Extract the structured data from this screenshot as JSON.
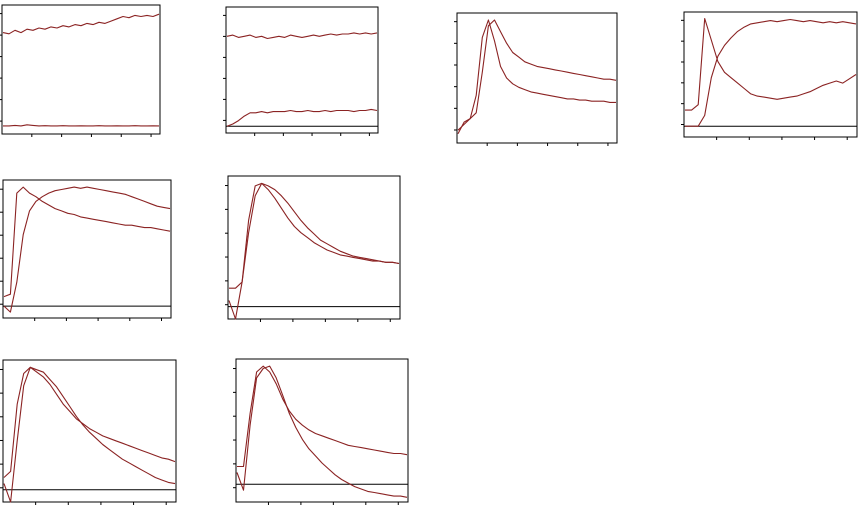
{
  "colors": {
    "series": "#8b2323",
    "axis": "#000000"
  },
  "chart_data": [
    {
      "type": "line",
      "ylim": [
        -0.06,
        1.06
      ],
      "zero_line": false,
      "n_xticks": 5,
      "n_yticks": 6,
      "series": [
        {
          "values": [
            0.82,
            0.81,
            0.84,
            0.82,
            0.85,
            0.84,
            0.86,
            0.85,
            0.87,
            0.86,
            0.88,
            0.87,
            0.89,
            0.88,
            0.9,
            0.89,
            0.91,
            0.9,
            0.92,
            0.94,
            0.96,
            0.95,
            0.97,
            0.96,
            0.97,
            0.96,
            0.98
          ]
        },
        {
          "values": [
            0.01,
            0.01,
            0.015,
            0.01,
            0.02,
            0.015,
            0.01,
            0.012,
            0.01,
            0.01,
            0.012,
            0.01,
            0.01,
            0.011,
            0.01,
            0.01,
            0.012,
            0.01,
            0.01,
            0.011,
            0.01,
            0.01,
            0.012,
            0.01,
            0.01,
            0.011,
            0.01
          ]
        }
      ]
    },
    {
      "type": "line",
      "ylim": [
        -0.06,
        1.06
      ],
      "zero_line": true,
      "n_xticks": 5,
      "n_yticks": 6,
      "series": [
        {
          "values": [
            0.8,
            0.81,
            0.79,
            0.8,
            0.81,
            0.79,
            0.8,
            0.78,
            0.79,
            0.8,
            0.79,
            0.81,
            0.8,
            0.79,
            0.8,
            0.81,
            0.8,
            0.81,
            0.82,
            0.81,
            0.82,
            0.82,
            0.83,
            0.82,
            0.83,
            0.82,
            0.83
          ]
        },
        {
          "values": [
            0,
            0.02,
            0.05,
            0.09,
            0.12,
            0.12,
            0.13,
            0.12,
            0.13,
            0.13,
            0.13,
            0.14,
            0.13,
            0.13,
            0.14,
            0.13,
            0.13,
            0.14,
            0.13,
            0.14,
            0.14,
            0.14,
            0.13,
            0.14,
            0.14,
            0.15,
            0.14
          ]
        }
      ]
    },
    {
      "type": "line",
      "ylim": [
        -0.06,
        1.06
      ],
      "zero_line": false,
      "n_xticks": 5,
      "n_yticks": 6,
      "series": [
        {
          "values": [
            0.02,
            0.12,
            0.15,
            0.2,
            0.55,
            0.95,
            1,
            0.9,
            0.8,
            0.72,
            0.68,
            0.64,
            0.62,
            0.6,
            0.59,
            0.58,
            0.57,
            0.56,
            0.55,
            0.54,
            0.53,
            0.52,
            0.51,
            0.5,
            0.49,
            0.49,
            0.48
          ]
        },
        {
          "values": [
            0.05,
            0.1,
            0.15,
            0.35,
            0.85,
            1,
            0.82,
            0.6,
            0.5,
            0.45,
            0.42,
            0.4,
            0.38,
            0.37,
            0.36,
            0.35,
            0.34,
            0.33,
            0.32,
            0.32,
            0.31,
            0.31,
            0.3,
            0.3,
            0.3,
            0.29,
            0.29
          ]
        }
      ]
    },
    {
      "type": "line",
      "ylim": [
        -0.1,
        1.06
      ],
      "zero_line": true,
      "n_xticks": 5,
      "n_yticks": 6,
      "series": [
        {
          "values": [
            0.15,
            0.15,
            0.2,
            1,
            0.8,
            0.6,
            0.5,
            0.45,
            0.4,
            0.35,
            0.3,
            0.28,
            0.27,
            0.26,
            0.25,
            0.26,
            0.27,
            0.28,
            0.3,
            0.32,
            0.35,
            0.38,
            0.4,
            0.42,
            0.4,
            0.44,
            0.48
          ]
        },
        {
          "values": [
            0,
            0,
            0,
            0.1,
            0.45,
            0.65,
            0.75,
            0.82,
            0.88,
            0.92,
            0.95,
            0.96,
            0.97,
            0.98,
            0.97,
            0.98,
            0.99,
            0.98,
            0.97,
            0.98,
            0.97,
            0.96,
            0.97,
            0.96,
            0.97,
            0.96,
            0.95
          ]
        }
      ]
    },
    {
      "type": "line",
      "ylim": [
        -0.1,
        1.06
      ],
      "zero_line": true,
      "n_xticks": 5,
      "n_yticks": 6,
      "series": [
        {
          "values": [
            0.08,
            0.1,
            0.95,
            1,
            0.95,
            0.92,
            0.88,
            0.85,
            0.82,
            0.8,
            0.78,
            0.77,
            0.75,
            0.74,
            0.73,
            0.72,
            0.71,
            0.7,
            0.69,
            0.68,
            0.68,
            0.67,
            0.66,
            0.66,
            0.65,
            0.64,
            0.63
          ]
        },
        {
          "values": [
            0,
            -0.05,
            0.2,
            0.6,
            0.8,
            0.88,
            0.92,
            0.95,
            0.97,
            0.98,
            0.99,
            1,
            0.99,
            1,
            0.99,
            0.98,
            0.97,
            0.96,
            0.95,
            0.94,
            0.92,
            0.9,
            0.88,
            0.86,
            0.84,
            0.83,
            0.82
          ]
        }
      ]
    },
    {
      "type": "line",
      "ylim": [
        -0.1,
        1.06
      ],
      "zero_line": true,
      "n_xticks": 5,
      "n_yticks": 6,
      "series": [
        {
          "values": [
            0.15,
            0.15,
            0.2,
            0.7,
            0.98,
            1,
            0.95,
            0.88,
            0.8,
            0.72,
            0.65,
            0.6,
            0.56,
            0.52,
            0.49,
            0.46,
            0.44,
            0.42,
            0.41,
            0.4,
            0.39,
            0.38,
            0.37,
            0.37,
            0.36,
            0.36,
            0.35
          ]
        },
        {
          "values": [
            0.05,
            -0.1,
            0.2,
            0.6,
            0.9,
            1,
            0.98,
            0.95,
            0.9,
            0.84,
            0.77,
            0.7,
            0.64,
            0.59,
            0.54,
            0.51,
            0.48,
            0.45,
            0.43,
            0.41,
            0.4,
            0.39,
            0.38,
            0.37,
            0.36,
            0.36,
            0.35
          ]
        }
      ]
    },
    {
      "type": "line",
      "ylim": [
        -0.1,
        1.06
      ],
      "zero_line": true,
      "n_xticks": 5,
      "n_yticks": 6,
      "series": [
        {
          "values": [
            0.1,
            0.15,
            0.7,
            0.95,
            1,
            0.96,
            0.92,
            0.86,
            0.78,
            0.7,
            0.64,
            0.58,
            0.54,
            0.5,
            0.47,
            0.44,
            0.42,
            0.4,
            0.38,
            0.36,
            0.34,
            0.32,
            0.3,
            0.28,
            0.26,
            0.25,
            0.23
          ]
        },
        {
          "values": [
            0.05,
            -0.1,
            0.4,
            0.85,
            1,
            0.98,
            0.96,
            0.9,
            0.84,
            0.76,
            0.68,
            0.6,
            0.53,
            0.47,
            0.42,
            0.37,
            0.33,
            0.29,
            0.25,
            0.22,
            0.19,
            0.16,
            0.13,
            0.1,
            0.08,
            0.06,
            0.05
          ]
        }
      ]
    },
    {
      "type": "line",
      "ylim": [
        -0.15,
        1.06
      ],
      "zero_line": true,
      "n_xticks": 5,
      "n_yticks": 6,
      "series": [
        {
          "values": [
            0.15,
            0.15,
            0.6,
            0.95,
            1,
            0.95,
            0.85,
            0.72,
            0.62,
            0.55,
            0.5,
            0.46,
            0.43,
            0.41,
            0.39,
            0.37,
            0.35,
            0.33,
            0.32,
            0.31,
            0.3,
            0.29,
            0.28,
            0.27,
            0.26,
            0.26,
            0.25
          ]
        },
        {
          "values": [
            0.1,
            -0.05,
            0.5,
            0.9,
            0.98,
            1,
            0.9,
            0.75,
            0.6,
            0.48,
            0.38,
            0.3,
            0.24,
            0.18,
            0.13,
            0.08,
            0.04,
            0.01,
            -0.02,
            -0.04,
            -0.06,
            -0.07,
            -0.08,
            -0.09,
            -0.1,
            -0.1,
            -0.11
          ]
        }
      ]
    }
  ]
}
